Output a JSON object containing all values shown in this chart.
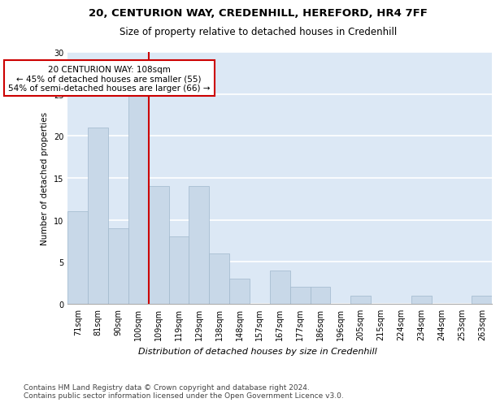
{
  "title1": "20, CENTURION WAY, CREDENHILL, HEREFORD, HR4 7FF",
  "title2": "Size of property relative to detached houses in Credenhill",
  "xlabel": "Distribution of detached houses by size in Credenhill",
  "ylabel": "Number of detached properties",
  "categories": [
    "71sqm",
    "81sqm",
    "90sqm",
    "100sqm",
    "109sqm",
    "119sqm",
    "129sqm",
    "138sqm",
    "148sqm",
    "157sqm",
    "167sqm",
    "177sqm",
    "186sqm",
    "196sqm",
    "205sqm",
    "215sqm",
    "224sqm",
    "234sqm",
    "244sqm",
    "253sqm",
    "263sqm"
  ],
  "values": [
    11,
    21,
    9,
    25,
    14,
    8,
    14,
    6,
    3,
    0,
    4,
    2,
    2,
    0,
    1,
    0,
    0,
    1,
    0,
    0,
    1
  ],
  "bar_color": "#c8d8e8",
  "bar_edge_color": "#a0b8cc",
  "vline_x": 3.5,
  "vline_color": "#cc0000",
  "annotation_line1": "20 CENTURION WAY: 108sqm",
  "annotation_line2": "← 45% of detached houses are smaller (55)",
  "annotation_line3": "54% of semi-detached houses are larger (66) →",
  "annotation_box_color": "#cc0000",
  "ylim": [
    0,
    30
  ],
  "yticks": [
    0,
    5,
    10,
    15,
    20,
    25,
    30
  ],
  "bg_color": "#dce8f5",
  "grid_color": "#ffffff",
  "footnote": "Contains HM Land Registry data © Crown copyright and database right 2024.\nContains public sector information licensed under the Open Government Licence v3.0.",
  "title1_fontsize": 9.5,
  "title2_fontsize": 8.5,
  "xlabel_fontsize": 8,
  "ylabel_fontsize": 7.5,
  "tick_fontsize": 7,
  "annotation_fontsize": 7.5,
  "footnote_fontsize": 6.5
}
